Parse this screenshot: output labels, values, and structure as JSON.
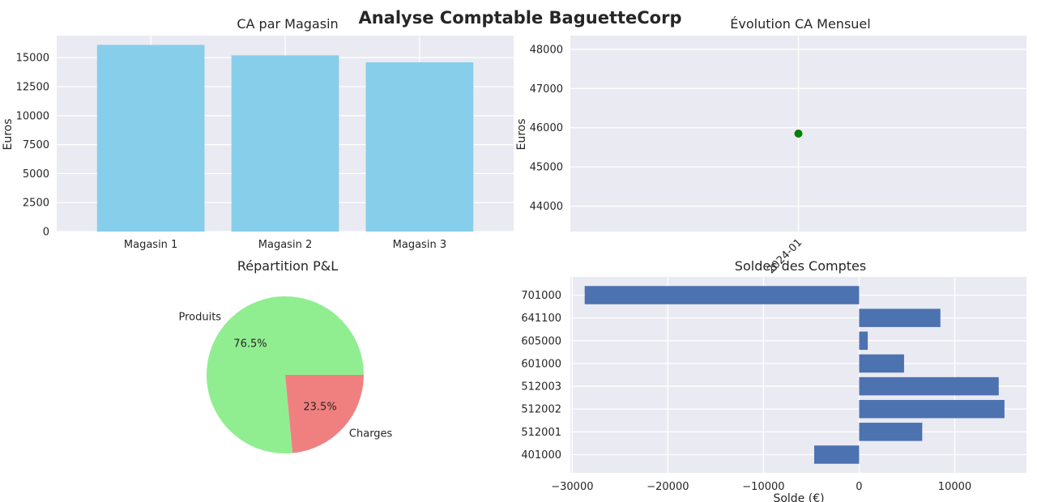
{
  "title": "Analyse Comptable BaguetteCorp",
  "colors": {
    "bars_ca": "#87CEEB",
    "line_point": "#008000",
    "produits": "#90EE90",
    "charges": "#F08080",
    "soldes": "#4C72B0",
    "axes_bg": "#EAEAF2"
  },
  "chart_data": [
    {
      "type": "bar",
      "title": "CA par Magasin",
      "xlabel": "",
      "ylabel": "Euros",
      "categories": [
        "Magasin 1",
        "Magasin 2",
        "Magasin 3"
      ],
      "values": [
        16100,
        15200,
        14600
      ],
      "ylim": [
        0,
        16900
      ],
      "yticks": [
        0,
        2500,
        5000,
        7500,
        10000,
        12500,
        15000
      ],
      "grid": true
    },
    {
      "type": "line",
      "title": "Évolution CA Mensuel",
      "xlabel": "",
      "ylabel": "Euros",
      "x": [
        "2024-01"
      ],
      "values": [
        45850
      ],
      "ylim": [
        43350,
        48350
      ],
      "yticks": [
        44000,
        45000,
        46000,
        47000,
        48000
      ],
      "grid": true
    },
    {
      "type": "pie",
      "title": "Répartition P&L",
      "labels": [
        "Produits",
        "Charges"
      ],
      "values": [
        76.5,
        23.5
      ],
      "pct_labels": [
        "76.5%",
        "23.5%"
      ]
    },
    {
      "type": "bar",
      "orientation": "horizontal",
      "title": "Soldes des Comptes",
      "xlabel": "Solde (€)",
      "ylabel": "",
      "categories": [
        "401000",
        "512001",
        "512002",
        "512003",
        "601000",
        "605000",
        "641100",
        "701000"
      ],
      "values": [
        -4700,
        6600,
        15200,
        14600,
        4700,
        900,
        8500,
        -28700
      ],
      "xlim": [
        -30200,
        17500
      ],
      "xticks": [
        -30000,
        -20000,
        -10000,
        0,
        10000
      ],
      "grid": true
    }
  ]
}
